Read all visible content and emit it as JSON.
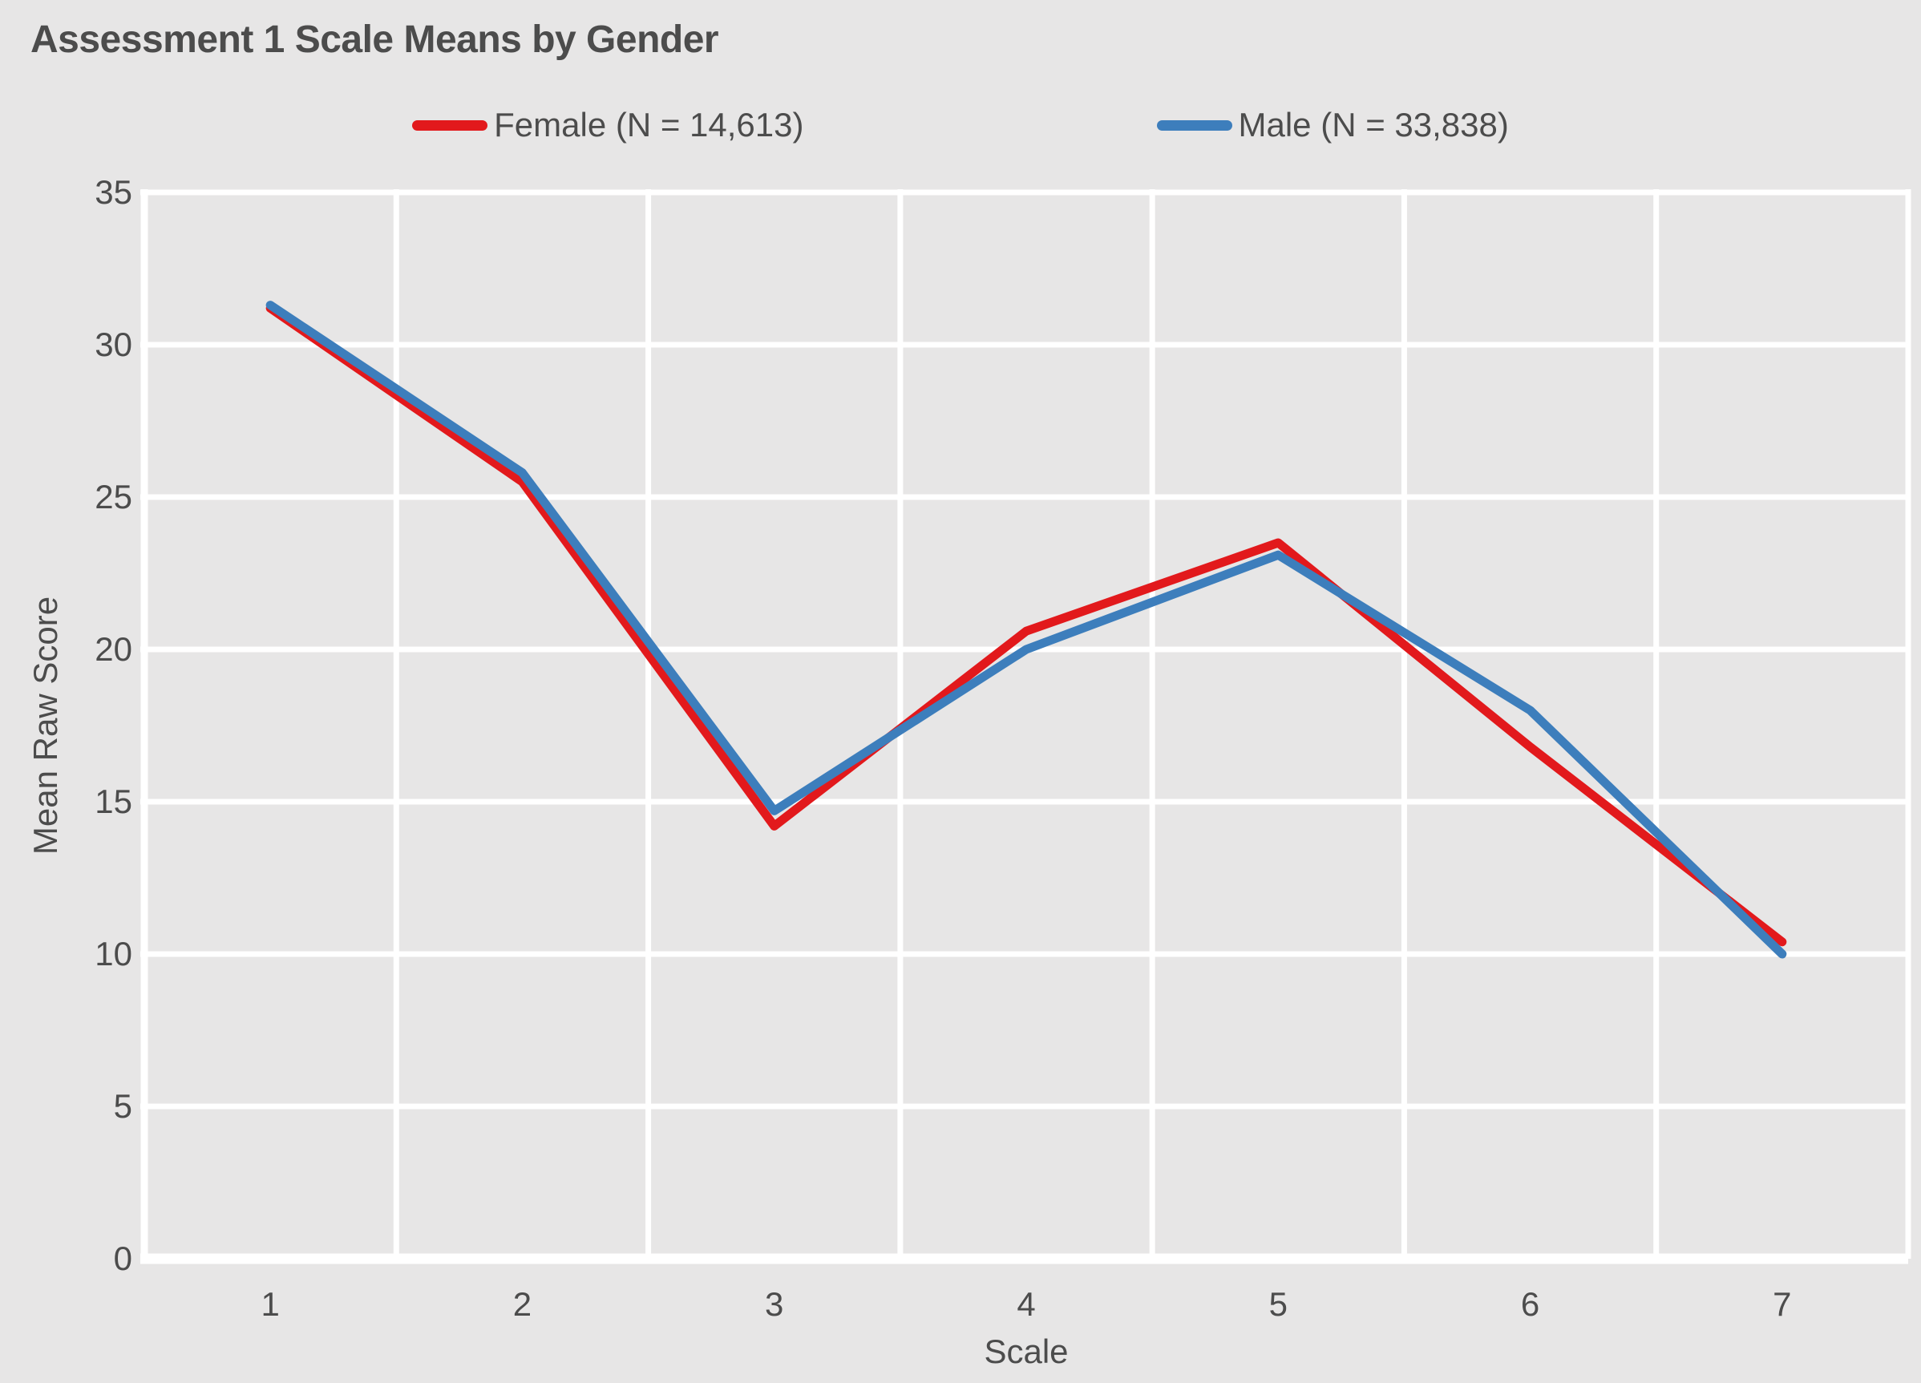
{
  "page": {
    "background": "#e7e6e6",
    "text_color": "#4c4c4c"
  },
  "header": {
    "title": "Assessment 1 Scale Means by Gender"
  },
  "legend": [
    {
      "label": "Female (N = 14,613)",
      "color": "#e2191c",
      "swatch": "red-line-swatch"
    },
    {
      "label": "Male (N = 33,838)",
      "color": "#3d7ebc",
      "swatch": "blue-line-swatch"
    }
  ],
  "chart_data": {
    "type": "line",
    "title": "Assessment 1 Scale Means by Gender",
    "categories": [
      "1",
      "2",
      "3",
      "4",
      "5",
      "6",
      "7"
    ],
    "series": [
      {
        "name": "Female (N = 14,613)",
        "color": "#e2191c",
        "values": [
          31.2,
          25.5,
          14.2,
          20.6,
          23.5,
          16.8,
          10.4
        ]
      },
      {
        "name": "Male (N = 33,838)",
        "color": "#3d7ebc",
        "values": [
          31.3,
          25.8,
          14.7,
          20.0,
          23.1,
          18.0,
          10.0
        ]
      }
    ],
    "xlabel": "Scale",
    "ylabel": "Mean Raw Score",
    "ylim": [
      0,
      35
    ],
    "y_step": 5,
    "y_ticks": [
      0,
      5,
      10,
      15,
      20,
      25,
      30,
      35
    ],
    "grid": "white major gridlines, horizontal every 5 units and vertical at category boundaries",
    "legend_position": "top-center",
    "colors": {
      "grid": "#ffffff",
      "background": "#e7e6e6",
      "text": "#4c4c4c"
    }
  }
}
